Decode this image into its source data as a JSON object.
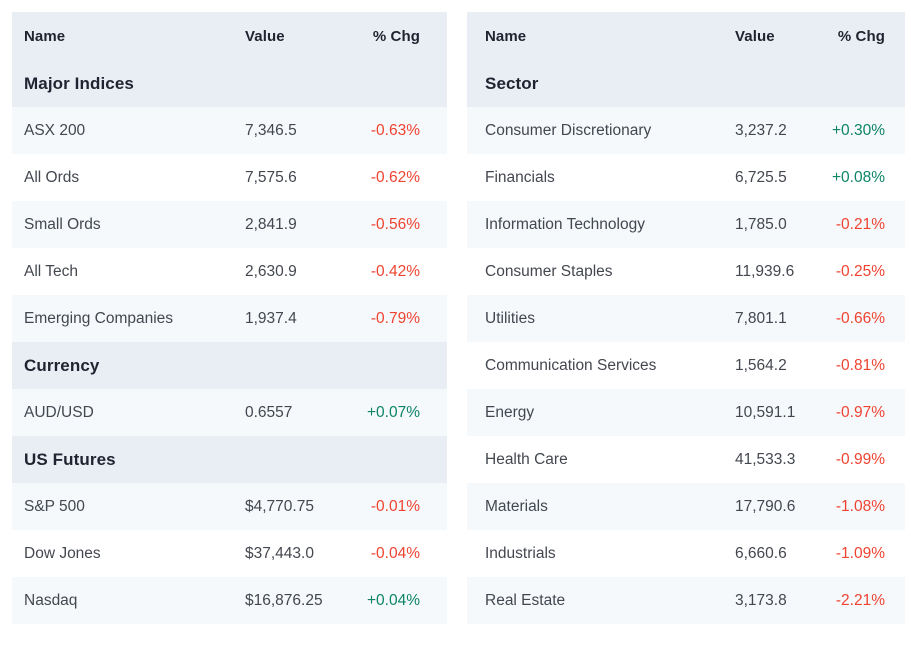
{
  "colors": {
    "header_bg": "#e9eef5",
    "row_alt_bg": "#f5f9fc",
    "row_bg": "#ffffff",
    "heading_text": "#1e2430",
    "body_text": "#43474f",
    "positive": "#0d8466",
    "negative": "#ef4331"
  },
  "tables": [
    {
      "name": "indices",
      "columns": [
        "Name",
        "Value",
        "% Chg"
      ],
      "sections": [
        {
          "title": "Major Indices",
          "rows": [
            {
              "name": "ASX 200",
              "value": "7,346.5",
              "chg": "-0.63%"
            },
            {
              "name": "All Ords",
              "value": "7,575.6",
              "chg": "-0.62%"
            },
            {
              "name": "Small Ords",
              "value": "2,841.9",
              "chg": "-0.56%"
            },
            {
              "name": "All Tech",
              "value": "2,630.9",
              "chg": "-0.42%"
            },
            {
              "name": "Emerging Companies",
              "value": "1,937.4",
              "chg": "-0.79%"
            }
          ]
        },
        {
          "title": "Currency",
          "rows": [
            {
              "name": "AUD/USD",
              "value": "0.6557",
              "chg": "+0.07%"
            }
          ]
        },
        {
          "title": "US Futures",
          "rows": [
            {
              "name": "S&P 500",
              "value": "$4,770.75",
              "chg": "-0.01%"
            },
            {
              "name": "Dow Jones",
              "value": "$37,443.0",
              "chg": "-0.04%"
            },
            {
              "name": "Nasdaq",
              "value": "$16,876.25",
              "chg": "+0.04%"
            }
          ]
        }
      ]
    },
    {
      "name": "sectors",
      "columns": [
        "Name",
        "Value",
        "% Chg"
      ],
      "sections": [
        {
          "title": "Sector",
          "rows": [
            {
              "name": "Consumer Discretionary",
              "value": "3,237.2",
              "chg": "+0.30%"
            },
            {
              "name": "Financials",
              "value": "6,725.5",
              "chg": "+0.08%"
            },
            {
              "name": "Information Technology",
              "value": "1,785.0",
              "chg": "-0.21%"
            },
            {
              "name": "Consumer Staples",
              "value": "11,939.6",
              "chg": "-0.25%"
            },
            {
              "name": "Utilities",
              "value": "7,801.1",
              "chg": "-0.66%"
            },
            {
              "name": "Communication Services",
              "value": "1,564.2",
              "chg": "-0.81%"
            },
            {
              "name": "Energy",
              "value": "10,591.1",
              "chg": "-0.97%"
            },
            {
              "name": "Health Care",
              "value": "41,533.3",
              "chg": "-0.99%"
            },
            {
              "name": "Materials",
              "value": "17,790.6",
              "chg": "-1.08%"
            },
            {
              "name": "Industrials",
              "value": "6,660.6",
              "chg": "-1.09%"
            },
            {
              "name": "Real Estate",
              "value": "3,173.8",
              "chg": "-2.21%"
            }
          ]
        }
      ]
    }
  ]
}
